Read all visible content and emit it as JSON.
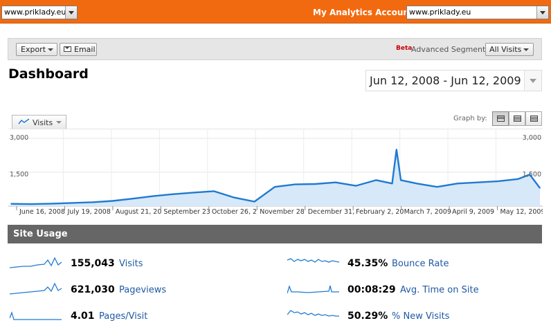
{
  "header": {
    "site_select_value": "www.priklady.eu",
    "accounts_label": "My Analytics Accounts:",
    "accounts_select_value": "www.priklady.eu"
  },
  "toolbar": {
    "export_label": "Export",
    "email_label": "Email",
    "beta_label": "Beta",
    "advanced_segments_label": "Advanced Segments:",
    "segment_value": "All Visits"
  },
  "page": {
    "title": "Dashboard",
    "date_range": "Jun 12, 2008 - Jun 12, 2009"
  },
  "graph_controls": {
    "metric_tab": "Visits",
    "graph_by_label": "Graph by:",
    "graph_by_options": [
      "day",
      "week",
      "month"
    ],
    "graph_by_selected": "day"
  },
  "chart_data": {
    "type": "area",
    "title": "",
    "xlabel": "",
    "ylabel": "",
    "ylim": [
      0,
      3000
    ],
    "y_ticks": [
      "3,000",
      "1,500"
    ],
    "x_tick_labels": [
      "June 16, 2008",
      "July 19, 2008",
      "August 21, 20",
      "September 23",
      "October 26, 2",
      "November 28",
      "December 31,",
      "February 2, 20",
      "March 7, 2009",
      "April 9, 2009",
      "May 12, 2009"
    ],
    "grid": true,
    "color": "#1f7ad1",
    "series": [
      {
        "x": [
          "2008-06-12",
          "2008-06-26",
          "2008-07-10",
          "2008-07-24",
          "2008-08-07",
          "2008-08-21",
          "2008-09-04",
          "2008-09-18",
          "2008-10-02",
          "2008-10-16",
          "2008-10-30",
          "2008-11-13",
          "2008-11-27",
          "2008-12-11",
          "2008-12-25",
          "2009-01-08",
          "2009-01-22",
          "2009-02-05",
          "2009-02-19",
          "2009-03-02",
          "2009-03-05",
          "2009-03-08",
          "2009-03-19",
          "2009-04-02",
          "2009-04-16",
          "2009-04-30",
          "2009-05-14",
          "2009-05-28",
          "2009-06-05",
          "2009-06-12"
        ],
        "values": [
          100,
          90,
          110,
          140,
          170,
          230,
          330,
          440,
          530,
          600,
          660,
          380,
          200,
          850,
          960,
          980,
          1050,
          900,
          1150,
          1000,
          2500,
          1150,
          1000,
          850,
          1000,
          1050,
          1100,
          1200,
          1400,
          800
        ]
      }
    ]
  },
  "site_usage": {
    "title": "Site Usage",
    "metrics": [
      {
        "value": "155,043",
        "label": "Visits"
      },
      {
        "value": "621,030",
        "label": "Pageviews"
      },
      {
        "value": "4.01",
        "label": "Pages/Visit"
      },
      {
        "value": "45.35%",
        "label": "Bounce Rate"
      },
      {
        "value": "00:08:29",
        "label": "Avg. Time on Site"
      },
      {
        "value": "50.29%",
        "label": "% New Visits"
      }
    ]
  },
  "colors": {
    "topbar": "#f26a10",
    "link": "#1f5aa3",
    "series": "#1f7ad1",
    "section_header": "#666666"
  }
}
